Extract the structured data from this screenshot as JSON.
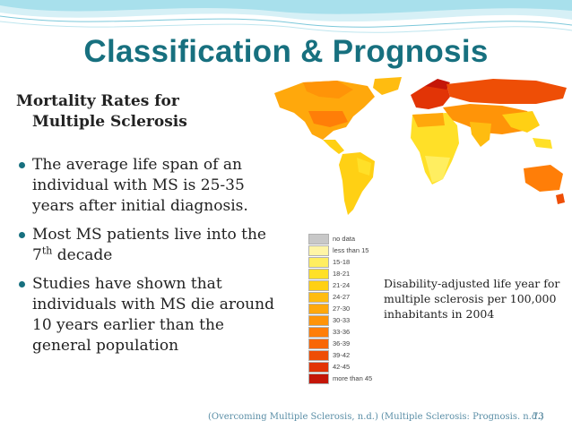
{
  "slide": {
    "title": "Classification  & Prognosis",
    "subheading": {
      "line1": "Mortality Rates for",
      "line2": "Multiple Sclerosis"
    },
    "bullets": [
      {
        "text": "The average life span of an individual with MS is 25-35 years after initial diagnosis."
      },
      {
        "pre": "Most MS patients live into the 7",
        "sup": "th",
        "post": " decade"
      },
      {
        "text": "Studies have shown that individuals with MS die around 10 years earlier than the general population"
      }
    ],
    "caption": "Disability-adjusted life year for multiple sclerosis per 100,000 inhabitants in 2004",
    "citation": "(Overcoming Multiple Sclerosis, n.d.) (Multiple Sclerosis: Prognosis. n.d.)",
    "page_number": "73"
  },
  "legend": [
    {
      "label": "no data",
      "color": "#c8c8c8"
    },
    {
      "label": "less than 15",
      "color": "#fff5a6"
    },
    {
      "label": "15-18",
      "color": "#ffee60"
    },
    {
      "label": "18-21",
      "color": "#ffe028"
    },
    {
      "label": "21-24",
      "color": "#ffd014"
    },
    {
      "label": "24-27",
      "color": "#ffbc10"
    },
    {
      "label": "27-30",
      "color": "#ffa80c"
    },
    {
      "label": "30-33",
      "color": "#ff9408"
    },
    {
      "label": "33-36",
      "color": "#ff7e08"
    },
    {
      "label": "36-39",
      "color": "#f86606"
    },
    {
      "label": "39-42",
      "color": "#ee4e06"
    },
    {
      "label": "42-45",
      "color": "#e23406"
    },
    {
      "label": "more than 45",
      "color": "#c41608"
    }
  ],
  "theme": {
    "title_color": "#17707f",
    "accent": "#8cd4e4"
  }
}
